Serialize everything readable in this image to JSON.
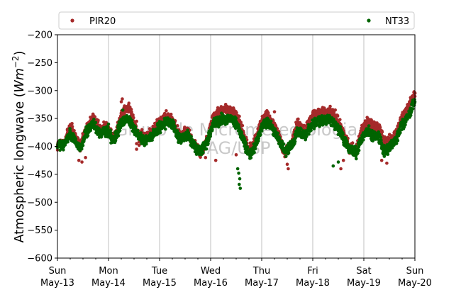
{
  "chart_data": {
    "type": "scatter",
    "ylabel_text": "Atmospheric longwave (",
    "ylabel_unit": "Wm",
    "ylabel_exp": "−2",
    "ylabel_close": ")",
    "ylim": [
      -600,
      -200
    ],
    "yticks": [
      -200,
      -250,
      -300,
      -350,
      -400,
      -450,
      -500,
      -550,
      -600
    ],
    "ytick_labels": [
      "−200",
      "−250",
      "−300",
      "−350",
      "−400",
      "−450",
      "−500",
      "−550",
      "−600"
    ],
    "xlim": [
      0,
      7
    ],
    "xticks": [
      {
        "day": 0,
        "line1": "Sun",
        "line2": "May-13"
      },
      {
        "day": 1,
        "line1": "Mon",
        "line2": "May-14"
      },
      {
        "day": 2,
        "line1": "Tue",
        "line2": "May-15"
      },
      {
        "day": 3,
        "line1": "Wed",
        "line2": "May-16"
      },
      {
        "day": 4,
        "line1": "Thu",
        "line2": "May-17"
      },
      {
        "day": 5,
        "line1": "Fri",
        "line2": "May-18"
      },
      {
        "day": 6,
        "line1": "Sat",
        "line2": "May-19"
      },
      {
        "day": 7,
        "line1": "Sun",
        "line2": "May-20"
      }
    ],
    "grid": "vertical",
    "legend_position": "top",
    "watermark_line1": "Grupo de Micrometeorologia",
    "watermark_line2": "IAG/USP",
    "series": [
      {
        "name": "PIR20",
        "color": "#a52a2a",
        "anchors": [
          [
            0.0,
            -398
          ],
          [
            0.15,
            -390
          ],
          [
            0.25,
            -362
          ],
          [
            0.32,
            -378
          ],
          [
            0.45,
            -402
          ],
          [
            0.55,
            -370
          ],
          [
            0.7,
            -348
          ],
          [
            0.85,
            -372
          ],
          [
            0.95,
            -360
          ],
          [
            1.1,
            -386
          ],
          [
            1.25,
            -345
          ],
          [
            1.35,
            -330
          ],
          [
            1.45,
            -340
          ],
          [
            1.55,
            -372
          ],
          [
            1.7,
            -385
          ],
          [
            1.85,
            -375
          ],
          [
            2.0,
            -355
          ],
          [
            2.15,
            -345
          ],
          [
            2.25,
            -352
          ],
          [
            2.4,
            -382
          ],
          [
            2.55,
            -372
          ],
          [
            2.65,
            -395
          ],
          [
            2.8,
            -412
          ],
          [
            2.95,
            -385
          ],
          [
            3.05,
            -345
          ],
          [
            3.2,
            -337
          ],
          [
            3.35,
            -334
          ],
          [
            3.5,
            -342
          ],
          [
            3.62,
            -372
          ],
          [
            3.75,
            -408
          ],
          [
            3.85,
            -395
          ],
          [
            4.0,
            -355
          ],
          [
            4.1,
            -342
          ],
          [
            4.2,
            -358
          ],
          [
            4.3,
            -372
          ],
          [
            4.45,
            -412
          ],
          [
            4.6,
            -392
          ],
          [
            4.7,
            -358
          ],
          [
            4.85,
            -375
          ],
          [
            5.0,
            -345
          ],
          [
            5.15,
            -340
          ],
          [
            5.3,
            -338
          ],
          [
            5.45,
            -346
          ],
          [
            5.55,
            -365
          ],
          [
            5.7,
            -398
          ],
          [
            5.85,
            -410
          ],
          [
            5.95,
            -372
          ],
          [
            6.05,
            -358
          ],
          [
            6.15,
            -360
          ],
          [
            6.3,
            -368
          ],
          [
            6.4,
            -392
          ],
          [
            6.55,
            -388
          ],
          [
            6.65,
            -372
          ],
          [
            6.75,
            -348
          ],
          [
            6.85,
            -335
          ],
          [
            6.95,
            -312
          ],
          [
            7.0,
            -305
          ]
        ],
        "outliers": [
          [
            0.42,
            -425
          ],
          [
            0.48,
            -428
          ],
          [
            0.55,
            -420
          ],
          [
            1.25,
            -320
          ],
          [
            1.27,
            -315
          ],
          [
            1.55,
            -355
          ],
          [
            1.6,
            -392
          ],
          [
            1.55,
            -395
          ],
          [
            1.6,
            -398
          ],
          [
            1.55,
            -405
          ],
          [
            2.9,
            -420
          ],
          [
            3.1,
            -425
          ],
          [
            3.5,
            -415
          ],
          [
            4.25,
            -338
          ],
          [
            4.5,
            -432
          ],
          [
            4.52,
            -440
          ],
          [
            5.55,
            -440
          ],
          [
            5.6,
            -425
          ],
          [
            6.35,
            -425
          ],
          [
            6.45,
            -430
          ]
        ]
      },
      {
        "name": "NT33",
        "color": "#006400",
        "anchors": [
          [
            0.0,
            -400
          ],
          [
            0.15,
            -394
          ],
          [
            0.25,
            -375
          ],
          [
            0.32,
            -385
          ],
          [
            0.45,
            -405
          ],
          [
            0.55,
            -378
          ],
          [
            0.7,
            -360
          ],
          [
            0.85,
            -378
          ],
          [
            0.95,
            -370
          ],
          [
            1.1,
            -390
          ],
          [
            1.25,
            -360
          ],
          [
            1.35,
            -350
          ],
          [
            1.45,
            -358
          ],
          [
            1.55,
            -378
          ],
          [
            1.7,
            -392
          ],
          [
            1.85,
            -382
          ],
          [
            2.0,
            -365
          ],
          [
            2.15,
            -358
          ],
          [
            2.25,
            -362
          ],
          [
            2.4,
            -388
          ],
          [
            2.55,
            -378
          ],
          [
            2.65,
            -398
          ],
          [
            2.8,
            -410
          ],
          [
            2.95,
            -390
          ],
          [
            3.05,
            -360
          ],
          [
            3.2,
            -352
          ],
          [
            3.35,
            -350
          ],
          [
            3.5,
            -358
          ],
          [
            3.62,
            -385
          ],
          [
            3.75,
            -415
          ],
          [
            3.85,
            -405
          ],
          [
            4.0,
            -365
          ],
          [
            4.1,
            -355
          ],
          [
            4.2,
            -365
          ],
          [
            4.3,
            -380
          ],
          [
            4.45,
            -410
          ],
          [
            4.6,
            -398
          ],
          [
            4.7,
            -372
          ],
          [
            4.85,
            -382
          ],
          [
            5.0,
            -360
          ],
          [
            5.15,
            -355
          ],
          [
            5.3,
            -352
          ],
          [
            5.45,
            -360
          ],
          [
            5.55,
            -378
          ],
          [
            5.7,
            -402
          ],
          [
            5.85,
            -412
          ],
          [
            5.95,
            -385
          ],
          [
            6.05,
            -372
          ],
          [
            6.15,
            -378
          ],
          [
            6.3,
            -385
          ],
          [
            6.4,
            -408
          ],
          [
            6.55,
            -398
          ],
          [
            6.65,
            -385
          ],
          [
            6.75,
            -362
          ],
          [
            6.85,
            -350
          ],
          [
            6.95,
            -328
          ],
          [
            7.0,
            -322
          ]
        ],
        "outliers": [
          [
            3.53,
            -440
          ],
          [
            3.55,
            -448
          ],
          [
            3.57,
            -458
          ],
          [
            3.58,
            -475
          ],
          [
            3.56,
            -468
          ],
          [
            5.4,
            -435
          ],
          [
            5.5,
            -428
          ],
          [
            1.0,
            -360
          ],
          [
            1.28,
            -335
          ],
          [
            6.5,
            -395
          ]
        ]
      }
    ]
  }
}
